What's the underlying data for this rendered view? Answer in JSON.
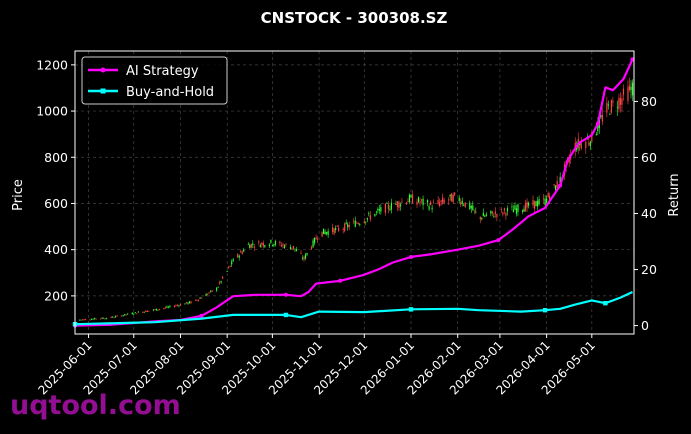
{
  "chart_data": {
    "type": "line",
    "title": "CNSTOCK - 300308.SZ",
    "ylabel": "Price",
    "y2label": "Return",
    "yticks": [
      200,
      400,
      600,
      800,
      1000,
      1200
    ],
    "y2ticks": [
      0,
      20,
      40,
      60,
      80
    ],
    "ylim": [
      35,
      1260
    ],
    "y2lim": [
      -3,
      98
    ],
    "xlim": [
      "2025-05-23",
      "2026-05-29"
    ],
    "xticks": [
      "2025-06-01",
      "2025-07-01",
      "2025-08-01",
      "2025-09-01",
      "2025-10-01",
      "2025-11-01",
      "2025-12-01",
      "2026-01-01",
      "2026-02-01",
      "2026-03-01",
      "2026-04-01",
      "2026-05-01"
    ],
    "grid": true,
    "legend_position": "top-left",
    "colors": {
      "ai": "#ff00ff",
      "bh": "#00ffff",
      "up": "#33ff33",
      "down": "#ff4444",
      "grid": "#444444",
      "axis": "#ffffff",
      "bg": "#000000"
    },
    "series": [
      {
        "name": "AI Strategy",
        "axis": "right",
        "marker": "circle",
        "points": [
          [
            "2025-05-23",
            0
          ],
          [
            "2025-06-15",
            0.3
          ],
          [
            "2025-07-15",
            1.5
          ],
          [
            "2025-08-01",
            2.0
          ],
          [
            "2025-08-15",
            3.5
          ],
          [
            "2025-08-25",
            6.5
          ],
          [
            "2025-09-05",
            10.5
          ],
          [
            "2025-09-20",
            11.0
          ],
          [
            "2025-10-10",
            11.0
          ],
          [
            "2025-10-20",
            10.5
          ],
          [
            "2025-10-25",
            12.0
          ],
          [
            "2025-10-30",
            15.0
          ],
          [
            "2025-11-15",
            16.0
          ],
          [
            "2025-11-30",
            18.0
          ],
          [
            "2025-12-10",
            20.0
          ],
          [
            "2025-12-20",
            22.5
          ],
          [
            "2026-01-01",
            24.5
          ],
          [
            "2026-01-15",
            25.5
          ],
          [
            "2026-01-31",
            27.0
          ],
          [
            "2026-02-15",
            28.5
          ],
          [
            "2026-02-28",
            30.5
          ],
          [
            "2026-03-10",
            34.5
          ],
          [
            "2026-03-20",
            39.0
          ],
          [
            "2026-03-31",
            42.0
          ],
          [
            "2026-04-10",
            50.0
          ],
          [
            "2026-04-15",
            59.0
          ],
          [
            "2026-04-22",
            65.0
          ],
          [
            "2026-05-01",
            68.0
          ],
          [
            "2026-05-05",
            72.0
          ],
          [
            "2026-05-10",
            85.0
          ],
          [
            "2026-05-15",
            84.0
          ],
          [
            "2026-05-22",
            88.0
          ],
          [
            "2026-05-28",
            95.0
          ]
        ]
      },
      {
        "name": "Buy-and-Hold",
        "axis": "right",
        "marker": "square",
        "points": [
          [
            "2025-05-23",
            0.5
          ],
          [
            "2025-07-15",
            1.2
          ],
          [
            "2025-08-15",
            2.5
          ],
          [
            "2025-09-05",
            3.8
          ],
          [
            "2025-10-10",
            3.8
          ],
          [
            "2025-10-20",
            3.0
          ],
          [
            "2025-11-01",
            5.0
          ],
          [
            "2025-12-01",
            4.8
          ],
          [
            "2026-01-01",
            5.8
          ],
          [
            "2026-02-01",
            6.0
          ],
          [
            "2026-02-15",
            5.5
          ],
          [
            "2026-03-15",
            5.0
          ],
          [
            "2026-03-31",
            5.5
          ],
          [
            "2026-04-10",
            6.0
          ],
          [
            "2026-04-20",
            7.5
          ],
          [
            "2026-05-01",
            9.0
          ],
          [
            "2026-05-10",
            8.0
          ],
          [
            "2026-05-20",
            10.0
          ],
          [
            "2026-05-28",
            12.0
          ]
        ]
      }
    ],
    "price_trend": [
      [
        "2025-05-23",
        95
      ],
      [
        "2025-06-15",
        105
      ],
      [
        "2025-07-01",
        125
      ],
      [
        "2025-07-20",
        145
      ],
      [
        "2025-08-10",
        175
      ],
      [
        "2025-08-25",
        230
      ],
      [
        "2025-09-05",
        350
      ],
      [
        "2025-09-15",
        420
      ],
      [
        "2025-10-01",
        430
      ],
      [
        "2025-10-15",
        410
      ],
      [
        "2025-10-22",
        360
      ],
      [
        "2025-11-01",
        470
      ],
      [
        "2025-11-15",
        490
      ],
      [
        "2025-12-01",
        530
      ],
      [
        "2025-12-15",
        580
      ],
      [
        "2026-01-01",
        620
      ],
      [
        "2026-01-15",
        590
      ],
      [
        "2026-01-31",
        630
      ],
      [
        "2026-02-10",
        580
      ],
      [
        "2026-02-15",
        540
      ],
      [
        "2026-03-01",
        560
      ],
      [
        "2026-03-15",
        580
      ],
      [
        "2026-03-31",
        610
      ],
      [
        "2026-04-10",
        700
      ],
      [
        "2026-04-20",
        850
      ],
      [
        "2026-05-01",
        880
      ],
      [
        "2026-05-10",
        1000
      ],
      [
        "2026-05-20",
        1050
      ],
      [
        "2026-05-28",
        1100
      ]
    ]
  },
  "watermark": "uqtool.com"
}
